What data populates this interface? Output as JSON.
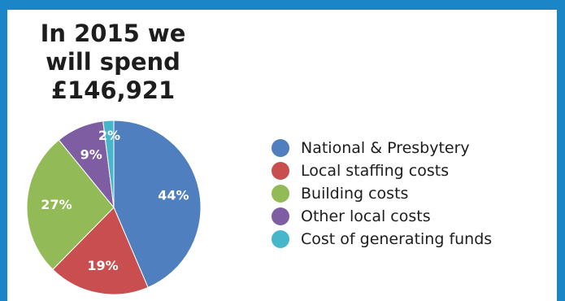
{
  "headline": {
    "line1": "In 2015 we",
    "line2": "will spend",
    "line3": "£146,921"
  },
  "chart_data": {
    "type": "pie",
    "title": "In 2015 we will spend £146,921",
    "categories": [
      "National & Presbytery",
      "Local staffing costs",
      "Building costs",
      "Other local costs",
      "Cost of generating funds"
    ],
    "values": [
      44,
      19,
      27,
      9,
      2
    ],
    "labels": [
      "44%",
      "19%",
      "27%",
      "9%",
      "2%"
    ],
    "colors": [
      "#4f7fbf",
      "#c84e4f",
      "#92bb57",
      "#7f5da3",
      "#46b6cb"
    ],
    "legend_position": "right"
  }
}
